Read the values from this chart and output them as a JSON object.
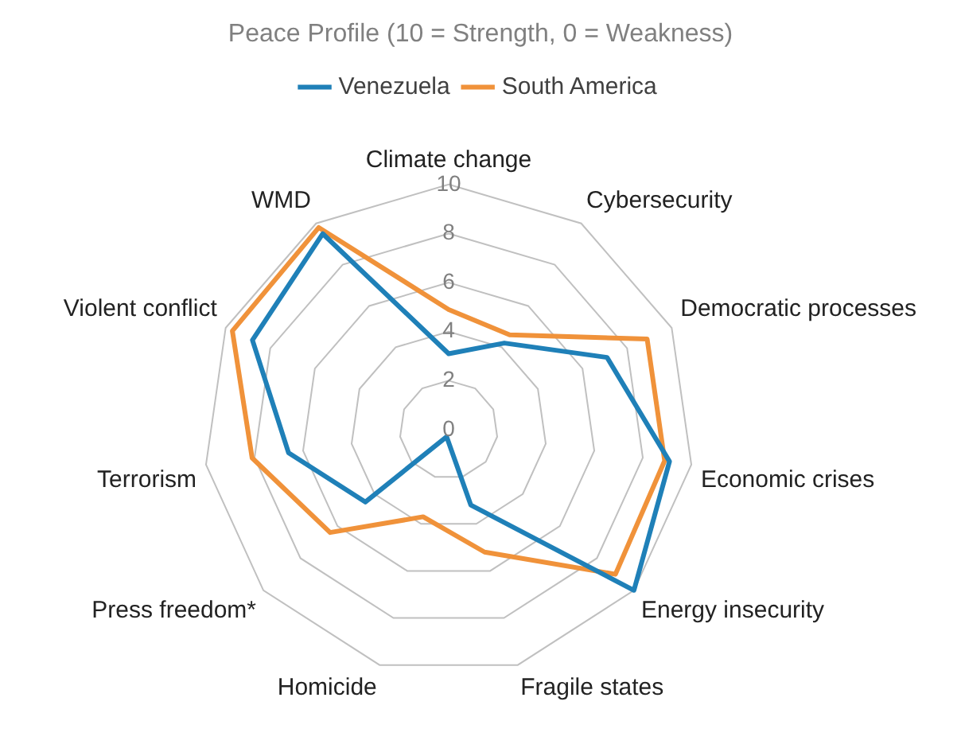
{
  "chart_data": {
    "type": "radar",
    "title": "Peace Profile (10 = Strength, 0 = Weakness)",
    "categories": [
      "Climate change",
      "Cybersecurity",
      "Democratic processes",
      "Economic crises",
      "Energy insecurity",
      "Fragile states",
      "Homicide",
      "Press freedom*",
      "Terrorism",
      "Violent conflict",
      "WMD"
    ],
    "series": [
      {
        "name": "Venezuela",
        "color": "#1f80b8",
        "values": [
          3.1,
          4.2,
          7.1,
          9.1,
          10,
          3.2,
          0.3,
          4.5,
          6.6,
          8.8,
          9.5
        ]
      },
      {
        "name": "South America",
        "color": "#f0923a",
        "values": [
          4.9,
          4.6,
          8.9,
          8.9,
          9.0,
          5.2,
          3.7,
          6.4,
          8.1,
          9.7,
          9.8
        ]
      }
    ],
    "ylim": [
      0,
      10
    ],
    "yticks": [
      0,
      2,
      4,
      6,
      8,
      10
    ],
    "grid": true,
    "legend": "top",
    "marker": "none",
    "line_style": "solid"
  }
}
